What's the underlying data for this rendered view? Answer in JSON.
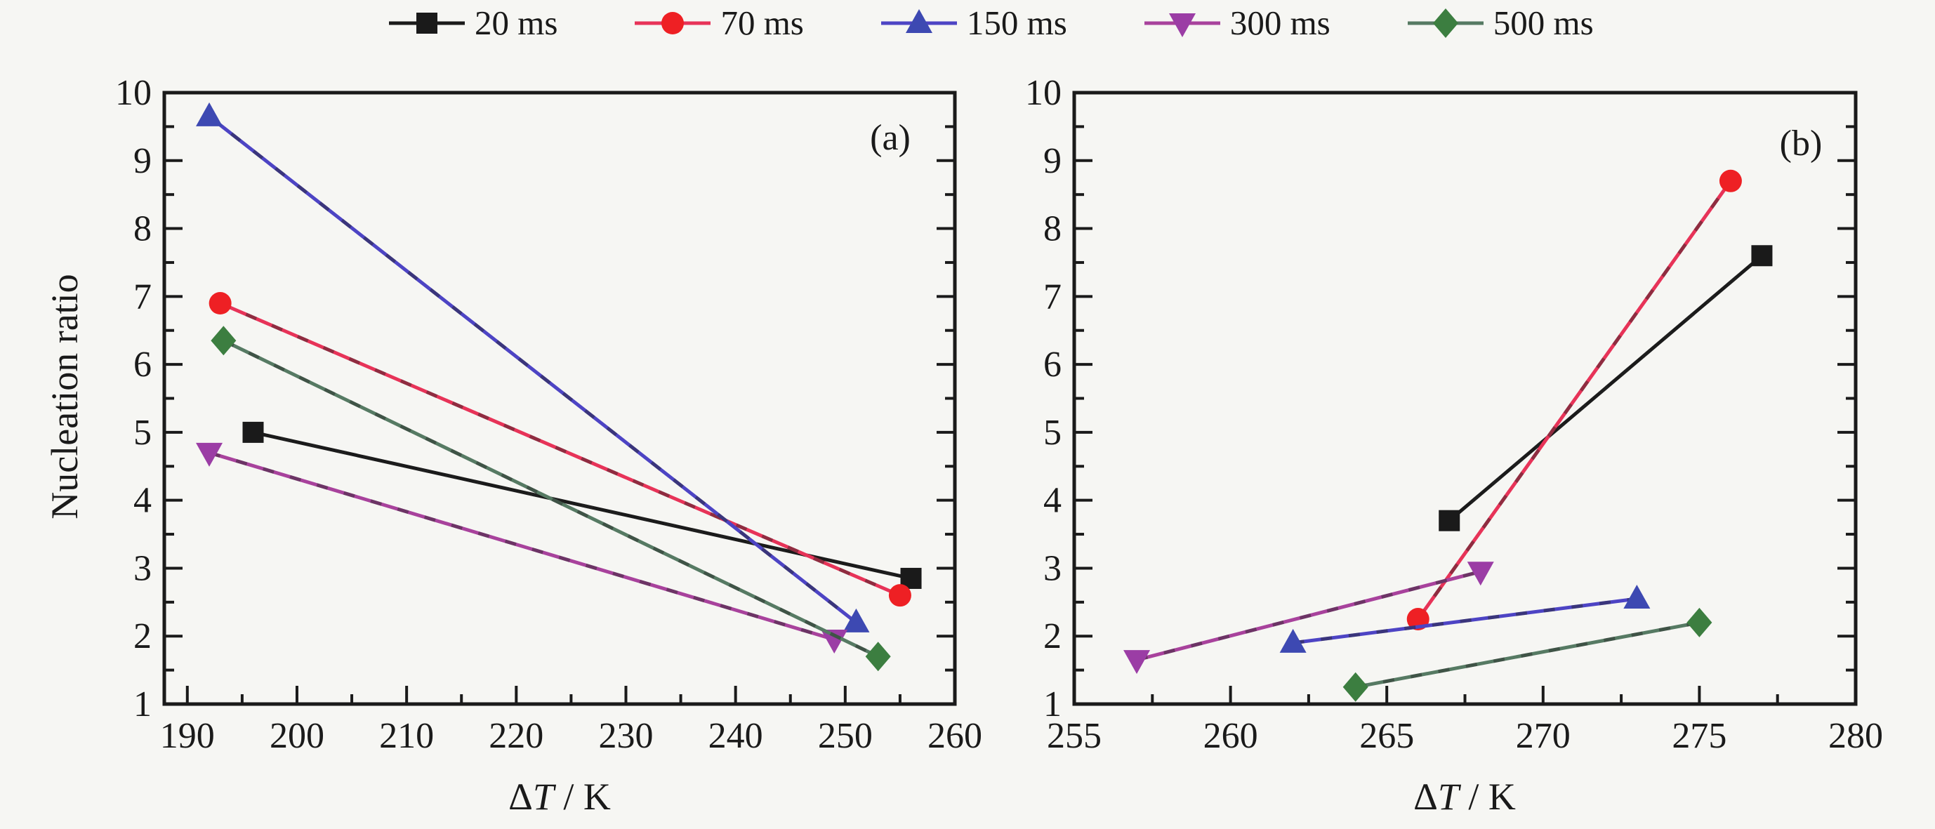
{
  "figure": {
    "background": "#f6f6f3",
    "ylabel": "Nucleation ratio",
    "xlabel_delta": "Δ",
    "xlabel_T": "T",
    "xlabel_unit": " / K",
    "frame_color": "#1a1a1a"
  },
  "legend": {
    "items": [
      {
        "label": "20 ms",
        "marker": "square",
        "color": "#1a1a1a",
        "line_color": "#1a1a1a"
      },
      {
        "label": "70 ms",
        "marker": "circle",
        "color": "#ee2024",
        "line_color": "#e73358"
      },
      {
        "label": "150 ms",
        "marker": "triangle-up",
        "color": "#3d49b2",
        "line_color": "#4d44c4"
      },
      {
        "label": "300 ms",
        "marker": "triangle-down",
        "color": "#9b3da5",
        "line_color": "#a8429c"
      },
      {
        "label": "500 ms",
        "marker": "diamond",
        "color": "#3c7e40",
        "line_color": "#567a63"
      }
    ]
  },
  "chart_data": [
    {
      "type": "line",
      "panel": "a",
      "title": "(a)",
      "xlabel": "ΔT / K",
      "ylabel": "Nucleation ratio",
      "xlim": [
        187.9,
        260
      ],
      "ylim": [
        1,
        10
      ],
      "x_ticks": [
        190,
        200,
        210,
        220,
        230,
        240,
        250,
        260
      ],
      "x_minor_step": 5,
      "y_ticks": [
        1,
        2,
        3,
        4,
        5,
        6,
        7,
        8,
        9,
        10
      ],
      "y_minor_step": 0.5,
      "grid": false,
      "legend_position": "top-outside",
      "series": [
        {
          "name": "20 ms",
          "x": [
            196,
            256
          ],
          "y": [
            5.0,
            2.85
          ]
        },
        {
          "name": "70 ms",
          "x": [
            193,
            255
          ],
          "y": [
            6.9,
            2.6
          ]
        },
        {
          "name": "150 ms",
          "x": [
            192,
            251
          ],
          "y": [
            9.65,
            2.2
          ]
        },
        {
          "name": "300 ms",
          "x": [
            192,
            249
          ],
          "y": [
            4.7,
            1.95
          ]
        },
        {
          "name": "500 ms",
          "x": [
            193.3,
            253
          ],
          "y": [
            6.35,
            1.7
          ]
        }
      ]
    },
    {
      "type": "line",
      "panel": "b",
      "title": "(b)",
      "xlabel": "ΔT / K",
      "ylabel": "Nucleation ratio",
      "xlim": [
        255,
        280
      ],
      "ylim": [
        1,
        10
      ],
      "x_ticks": [
        255,
        260,
        265,
        270,
        275,
        280
      ],
      "x_minor_step": 2.5,
      "y_ticks": [
        1,
        2,
        3,
        4,
        5,
        6,
        7,
        8,
        9,
        10
      ],
      "y_minor_step": 0.5,
      "grid": false,
      "legend_position": "shared-top",
      "series": [
        {
          "name": "20 ms",
          "x": [
            267,
            277
          ],
          "y": [
            3.7,
            7.6
          ]
        },
        {
          "name": "70 ms",
          "x": [
            266,
            276
          ],
          "y": [
            2.25,
            8.7
          ]
        },
        {
          "name": "150 ms",
          "x": [
            262,
            273
          ],
          "y": [
            1.9,
            2.55
          ]
        },
        {
          "name": "300 ms",
          "x": [
            257,
            268
          ],
          "y": [
            1.65,
            2.95
          ]
        },
        {
          "name": "500 ms",
          "x": [
            264,
            275
          ],
          "y": [
            1.25,
            2.2
          ]
        }
      ]
    }
  ]
}
